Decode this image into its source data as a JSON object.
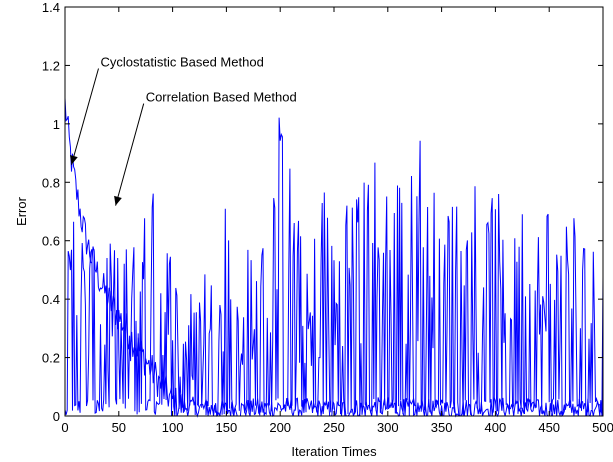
{
  "chart_data": {
    "type": "line",
    "title": "",
    "xlabel": "Iteration Times",
    "ylabel": "Error",
    "xlim": [
      0,
      500
    ],
    "ylim": [
      0,
      1.4
    ],
    "xticks": [
      0,
      50,
      100,
      150,
      200,
      250,
      300,
      350,
      400,
      450,
      500
    ],
    "yticks": [
      0,
      0.2,
      0.4,
      0.6,
      0.8,
      1,
      1.2,
      1.4
    ],
    "xtick_labels": [
      "0",
      "50",
      "100",
      "150",
      "200",
      "250",
      "300",
      "350",
      "400",
      "450",
      "500"
    ],
    "ytick_labels": [
      "0",
      "0.2",
      "0.4",
      "0.6",
      "0.8",
      "1",
      "1.2",
      "1.4"
    ],
    "grid": false,
    "box": true,
    "series": [
      {
        "color": "#0000ff",
        "description": "Cyclostatistic: decays from ~1.07 to near 0 by ~100 iterations, small noise afterwards",
        "x": [
          0,
          2,
          5,
          10,
          15,
          20,
          25,
          30,
          35,
          40,
          50,
          60,
          70,
          80,
          90,
          100,
          110,
          120,
          150,
          200,
          250,
          300,
          350,
          400,
          450,
          500
        ],
        "y": [
          1.07,
          1.0,
          0.9,
          0.78,
          0.68,
          0.6,
          0.54,
          0.49,
          0.44,
          0.4,
          0.34,
          0.28,
          0.22,
          0.16,
          0.1,
          0.05,
          0.03,
          0.03,
          0.02,
          0.03,
          0.02,
          0.03,
          0.02,
          0.03,
          0.02,
          0.03
        ],
        "noise": 0.06
      },
      {
        "color": "#0000ff",
        "description": "Correlation: large oscillations between ~0 and ~1 across all iterations",
        "x": [
          0,
          10,
          20,
          30,
          40,
          50,
          60,
          70,
          80,
          90,
          100,
          110,
          120,
          130,
          140,
          150,
          160,
          170,
          180,
          190,
          200,
          210,
          220,
          230,
          240,
          250,
          260,
          270,
          280,
          290,
          300,
          310,
          320,
          330,
          340,
          350,
          360,
          370,
          380,
          390,
          400,
          410,
          420,
          430,
          440,
          450,
          460,
          470,
          480,
          490,
          500
        ],
        "y": [
          0.6,
          0.7,
          0.62,
          0.6,
          0.62,
          0.55,
          0.6,
          0.64,
          0.83,
          0.6,
          0.55,
          0.5,
          0.46,
          0.52,
          0.5,
          0.75,
          0.46,
          0.58,
          0.5,
          0.84,
          1.05,
          0.85,
          0.6,
          0.62,
          0.86,
          0.6,
          0.7,
          0.88,
          0.85,
          0.9,
          0.84,
          0.8,
          0.78,
          1.04,
          0.84,
          0.72,
          0.78,
          0.7,
          0.86,
          0.82,
          0.76,
          0.78,
          0.76,
          0.72,
          0.66,
          0.74,
          0.62,
          0.72,
          0.58,
          0.7,
          0.58
        ],
        "noise": 0.0
      }
    ],
    "annotations": [
      {
        "text": "Cyclostatistic Based Method",
        "text_x": 33,
        "text_y": 1.21,
        "arrow_to_x": 6,
        "arrow_to_y": 0.86
      },
      {
        "text": "Correlation Based Method",
        "text_x": 75,
        "text_y": 1.09,
        "arrow_to_x": 47,
        "arrow_to_y": 0.72
      }
    ]
  }
}
